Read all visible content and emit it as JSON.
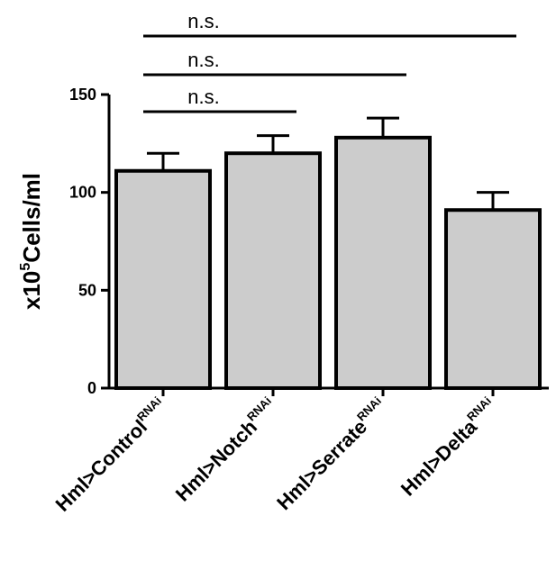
{
  "chart_data": {
    "type": "bar",
    "ylabel": {
      "prefix": "x10",
      "exponent": "5",
      "suffix": "Cells/ml"
    },
    "ylim": [
      0,
      150
    ],
    "yticks": [
      0,
      50,
      100,
      150
    ],
    "categories": [
      {
        "base": "Hml>Control",
        "sup": "RNAi"
      },
      {
        "base": "Hml>Notch",
        "sup": "RNAi"
      },
      {
        "base": "Hml>Serrate",
        "sup": "RNAi"
      },
      {
        "base": "Hml>Delta",
        "sup": "RNAi"
      }
    ],
    "values": [
      111,
      120,
      128,
      91
    ],
    "errors": [
      9,
      9,
      10,
      9
    ],
    "bar_color": "#cccccc",
    "grid": false,
    "annotations": [
      {
        "from": 0,
        "to": 1,
        "text": "n.s."
      },
      {
        "from": 0,
        "to": 2,
        "text": "n.s."
      },
      {
        "from": 0,
        "to": 3,
        "text": "n.s."
      }
    ]
  }
}
